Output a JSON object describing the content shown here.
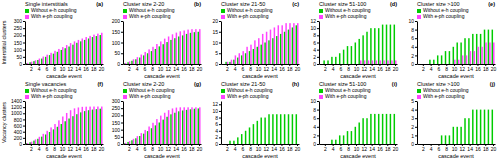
{
  "chart_data": [
    {
      "type": "bar",
      "xlabel": "cascade event",
      "ylabel": "Interstitial clusters",
      "annotations": [
        "(a)",
        "Single interstitials"
      ],
      "legend": "upper left",
      "x": [
        1,
        2,
        3,
        4,
        5,
        6,
        7,
        8,
        9,
        10,
        11,
        12,
        13,
        14,
        15,
        16,
        17,
        18,
        19,
        20
      ],
      "xlim": [
        0.5,
        20.5
      ],
      "xticks": [
        2,
        4,
        6,
        8,
        10,
        12,
        14,
        16,
        18,
        20
      ],
      "ylim": [
        0,
        300
      ],
      "yticks": [
        0,
        50,
        100,
        150,
        200,
        250,
        300
      ],
      "series": [
        {
          "name": "Without e-h coupling",
          "color": "#00cc00",
          "values": [
            5,
            12,
            20,
            28,
            38,
            50,
            62,
            72,
            85,
            98,
            110,
            122,
            135,
            148,
            158,
            168,
            178,
            188,
            195,
            202
          ]
        },
        {
          "name": "With e-ph coupling",
          "color": "#ff44ff",
          "values": [
            8,
            16,
            26,
            38,
            52,
            65,
            78,
            92,
            105,
            118,
            132,
            146,
            158,
            168,
            178,
            188,
            196,
            205,
            212,
            218
          ]
        }
      ]
    },
    {
      "type": "bar",
      "xlabel": "cascade event",
      "annotations": [
        "(b)",
        "Cluster size 2-20"
      ],
      "legend": "upper left",
      "x": [
        1,
        2,
        3,
        4,
        5,
        6,
        7,
        8,
        9,
        10,
        11,
        12,
        13,
        14,
        15,
        16,
        17,
        18,
        19,
        20
      ],
      "xlim": [
        0.5,
        20.5
      ],
      "xticks": [
        2,
        4,
        6,
        8,
        10,
        12,
        14,
        16,
        18,
        20
      ],
      "ylim": [
        0,
        200
      ],
      "yticks": [
        0,
        50,
        100,
        150,
        200
      ],
      "series": [
        {
          "name": "Without e-h coupling",
          "color": "#00cc00",
          "values": [
            3,
            8,
            15,
            22,
            30,
            40,
            50,
            60,
            70,
            82,
            92,
            102,
            112,
            120,
            128,
            133,
            140,
            145,
            148,
            150
          ]
        },
        {
          "name": "With e-ph coupling",
          "color": "#ff44ff",
          "values": [
            5,
            12,
            22,
            32,
            44,
            56,
            68,
            80,
            93,
            105,
            118,
            128,
            138,
            146,
            152,
            156,
            160,
            162,
            162,
            162
          ]
        }
      ]
    },
    {
      "type": "bar",
      "xlabel": "cascade event",
      "annotations": [
        "(c)",
        "Cluster size 21-50"
      ],
      "legend": "upper left",
      "x": [
        1,
        2,
        3,
        4,
        5,
        6,
        7,
        8,
        9,
        10,
        11,
        12,
        13,
        14,
        15,
        16,
        17,
        18,
        19,
        20
      ],
      "xlim": [
        0.5,
        20.5
      ],
      "xticks": [
        2,
        4,
        6,
        8,
        10,
        12,
        14,
        16,
        18,
        20
      ],
      "ylim": [
        0,
        20
      ],
      "yticks": [
        0,
        5,
        10,
        15,
        20
      ],
      "series": [
        {
          "name": "Without e-h coupling",
          "color": "#00cc00",
          "values": [
            0,
            1,
            1,
            2,
            3,
            4,
            5,
            6,
            7,
            8,
            9,
            10,
            11,
            12,
            13,
            14,
            15,
            16,
            17,
            18
          ]
        },
        {
          "name": "With e-ph coupling",
          "color": "#ff44ff",
          "values": [
            0,
            1,
            2,
            4,
            5,
            6,
            8,
            9,
            11,
            12,
            14,
            15,
            16,
            17,
            18,
            18,
            19,
            19,
            19,
            19
          ]
        }
      ]
    },
    {
      "type": "bar",
      "xlabel": "cascade event",
      "annotations": [
        "(d)",
        "Cluster size 51-100"
      ],
      "legend": "upper left",
      "x": [
        1,
        2,
        3,
        4,
        5,
        6,
        7,
        8,
        9,
        10,
        11,
        12,
        13,
        14,
        15,
        16,
        17,
        18,
        19,
        20
      ],
      "xlim": [
        0.5,
        20.5
      ],
      "xticks": [
        2,
        4,
        6,
        8,
        10,
        12,
        14,
        16,
        18,
        20
      ],
      "ylim": [
        0,
        12
      ],
      "yticks": [
        0,
        2,
        4,
        6,
        8,
        10,
        12
      ],
      "series": [
        {
          "name": "Without e-h coupling",
          "color": "#00cc00",
          "values": [
            0,
            1,
            1,
            2,
            2,
            3,
            4,
            5,
            5,
            6,
            7,
            8,
            9,
            10,
            10,
            10,
            11,
            11,
            11,
            11
          ]
        },
        {
          "name": "With e-ph coupling",
          "color": "#ff44ff",
          "values": [
            0,
            0,
            0,
            0,
            0,
            0,
            0,
            0,
            0,
            0,
            1,
            1,
            1,
            1,
            1,
            1,
            1,
            1,
            1,
            1
          ]
        }
      ]
    },
    {
      "type": "bar",
      "xlabel": "cascade event",
      "annotations": [
        "(e)",
        "Cluster size >100"
      ],
      "legend": "upper left",
      "x": [
        1,
        2,
        3,
        4,
        5,
        6,
        7,
        8,
        9,
        10,
        11,
        12,
        13,
        14,
        15,
        16,
        17,
        18,
        19,
        20
      ],
      "xlim": [
        0.5,
        20.5
      ],
      "xticks": [
        2,
        4,
        6,
        8,
        10,
        12,
        14,
        16,
        18,
        20
      ],
      "ylim": [
        0,
        10
      ],
      "yticks": [
        0,
        2,
        4,
        6,
        8,
        10
      ],
      "series": [
        {
          "name": "Without e-h coupling",
          "color": "#00cc00",
          "values": [
            0,
            0,
            0,
            1,
            1,
            2,
            2,
            3,
            3,
            4,
            5,
            5,
            6,
            6,
            7,
            7,
            7,
            8,
            8,
            8
          ]
        },
        {
          "name": "With e-ph coupling",
          "color": "#ff44ff",
          "values": [
            0,
            0,
            0,
            0,
            0,
            0,
            0,
            0,
            0,
            1,
            1,
            2,
            2,
            3,
            3,
            4,
            4,
            5,
            5,
            5
          ]
        }
      ]
    },
    {
      "type": "bar",
      "xlabel": "cascade event",
      "ylabel": "Vacancy clusters",
      "annotations": [
        "(f)",
        "Single vacancies"
      ],
      "legend": "upper left",
      "x": [
        1,
        2,
        3,
        4,
        5,
        6,
        7,
        8,
        9,
        10,
        11,
        12,
        13,
        14,
        15,
        16,
        17,
        18,
        19,
        20
      ],
      "xlim": [
        0.5,
        20.5
      ],
      "xticks": [
        2,
        4,
        6,
        8,
        10,
        12,
        14,
        16,
        18,
        20
      ],
      "ylim": [
        0,
        1400
      ],
      "yticks": [
        0,
        200,
        400,
        600,
        800,
        1000,
        1200,
        1400
      ],
      "series": [
        {
          "name": "Without e-h coupling",
          "color": "#00cc00",
          "values": [
            25,
            55,
            110,
            170,
            240,
            310,
            390,
            475,
            560,
            650,
            740,
            830,
            905,
            970,
            1030,
            1070,
            1100,
            1120,
            1135,
            1150
          ]
        },
        {
          "name": "With e-ph coupling",
          "color": "#ff44ff",
          "values": [
            32,
            75,
            150,
            235,
            330,
            430,
            540,
            650,
            770,
            895,
            1010,
            1100,
            1160,
            1190,
            1210,
            1215,
            1218,
            1220,
            1220,
            1220
          ]
        }
      ]
    },
    {
      "type": "bar",
      "xlabel": "cascade event",
      "annotations": [
        "(g)",
        "Cluster size 2-20"
      ],
      "legend": "upper left",
      "x": [
        1,
        2,
        3,
        4,
        5,
        6,
        7,
        8,
        9,
        10,
        11,
        12,
        13,
        14,
        15,
        16,
        17,
        18,
        19,
        20
      ],
      "xlim": [
        0.5,
        20.5
      ],
      "xticks": [
        2,
        4,
        6,
        8,
        10,
        12,
        14,
        16,
        18,
        20
      ],
      "ylim": [
        0,
        300
      ],
      "yticks": [
        0,
        50,
        100,
        150,
        200,
        250,
        300
      ],
      "series": [
        {
          "name": "Without e-h coupling",
          "color": "#00cc00",
          "values": [
            5,
            14,
            26,
            40,
            56,
            72,
            90,
            110,
            130,
            150,
            170,
            190,
            207,
            218,
            228,
            234,
            238,
            242,
            246,
            248
          ]
        },
        {
          "name": "With e-ph coupling",
          "color": "#ff44ff",
          "values": [
            8,
            20,
            36,
            55,
            76,
            98,
            122,
            148,
            174,
            198,
            218,
            236,
            248,
            254,
            256,
            256,
            256,
            256,
            256,
            256
          ]
        }
      ]
    },
    {
      "type": "bar",
      "xlabel": "cascade event",
      "annotations": [
        "(h)",
        "Cluster size 21-50"
      ],
      "legend": "upper left",
      "x": [
        1,
        2,
        3,
        4,
        5,
        6,
        7,
        8,
        9,
        10,
        11,
        12,
        13,
        14,
        15,
        16,
        17,
        18,
        19,
        20
      ],
      "xlim": [
        0.5,
        20.5
      ],
      "xticks": [
        2,
        4,
        6,
        8,
        10,
        12,
        14,
        16,
        18,
        20
      ],
      "ylim": [
        0,
        13
      ],
      "yticks": [
        0,
        2,
        4,
        6,
        8,
        10,
        12
      ],
      "series": [
        {
          "name": "Without e-h coupling",
          "color": "#00cc00",
          "values": [
            0,
            0,
            1,
            1,
            2,
            3,
            4,
            5,
            6,
            7,
            8,
            8,
            9,
            9,
            9,
            9,
            9,
            9,
            9,
            9
          ]
        },
        {
          "name": "With e-ph coupling",
          "color": "#ff44ff",
          "values": [
            0,
            0,
            0,
            0,
            0,
            0,
            0,
            0,
            0,
            0,
            0,
            0,
            0,
            0,
            0,
            0,
            0,
            0,
            0,
            0
          ]
        }
      ]
    },
    {
      "type": "bar",
      "xlabel": "cascade event",
      "annotations": [
        "(i)",
        "Cluster size 51-100"
      ],
      "legend": "upper left",
      "x": [
        1,
        2,
        3,
        4,
        5,
        6,
        7,
        8,
        9,
        10,
        11,
        12,
        13,
        14,
        15,
        16,
        17,
        18,
        19,
        20
      ],
      "xlim": [
        0.5,
        20.5
      ],
      "xticks": [
        2,
        4,
        6,
        8,
        10,
        12,
        14,
        16,
        18,
        20
      ],
      "ylim": [
        0,
        10
      ],
      "yticks": [
        0,
        2,
        4,
        6,
        8,
        10
      ],
      "series": [
        {
          "name": "Without e-h coupling",
          "color": "#00cc00",
          "values": [
            0,
            0,
            0,
            1,
            1,
            2,
            2,
            3,
            3,
            4,
            5,
            6,
            6,
            7,
            7,
            7,
            7,
            7,
            7,
            7
          ]
        },
        {
          "name": "With e-ph coupling",
          "color": "#ff44ff",
          "values": [
            0,
            0,
            0,
            0,
            0,
            0,
            0,
            0,
            0,
            0,
            0,
            0,
            0,
            0,
            0,
            0,
            0,
            0,
            0,
            0
          ]
        }
      ]
    },
    {
      "type": "bar",
      "xlabel": "cascade event",
      "annotations": [
        "(j)",
        "Cluster size >100"
      ],
      "legend": "upper left",
      "x": [
        1,
        2,
        3,
        4,
        5,
        6,
        7,
        8,
        9,
        10,
        11,
        12,
        13,
        14,
        15,
        16,
        17,
        18,
        19,
        20
      ],
      "xlim": [
        0.5,
        20.5
      ],
      "xticks": [
        2,
        4,
        6,
        8,
        10,
        12,
        14,
        16,
        18,
        20
      ],
      "ylim": [
        0,
        5
      ],
      "yticks": [
        0,
        1,
        2,
        3,
        4,
        5
      ],
      "series": [
        {
          "name": "Without e-h coupling",
          "color": "#00cc00",
          "values": [
            0,
            0,
            0,
            0,
            0,
            0,
            1,
            1,
            1,
            2,
            2,
            2,
            3,
            3,
            4,
            4,
            4,
            4,
            4,
            4
          ]
        },
        {
          "name": "With e-ph coupling",
          "color": "#ff44ff",
          "values": [
            0,
            0,
            0,
            0,
            0,
            0,
            0,
            0,
            0,
            0,
            0,
            0,
            0,
            0,
            0,
            0,
            0,
            0,
            0,
            0
          ]
        }
      ]
    }
  ]
}
